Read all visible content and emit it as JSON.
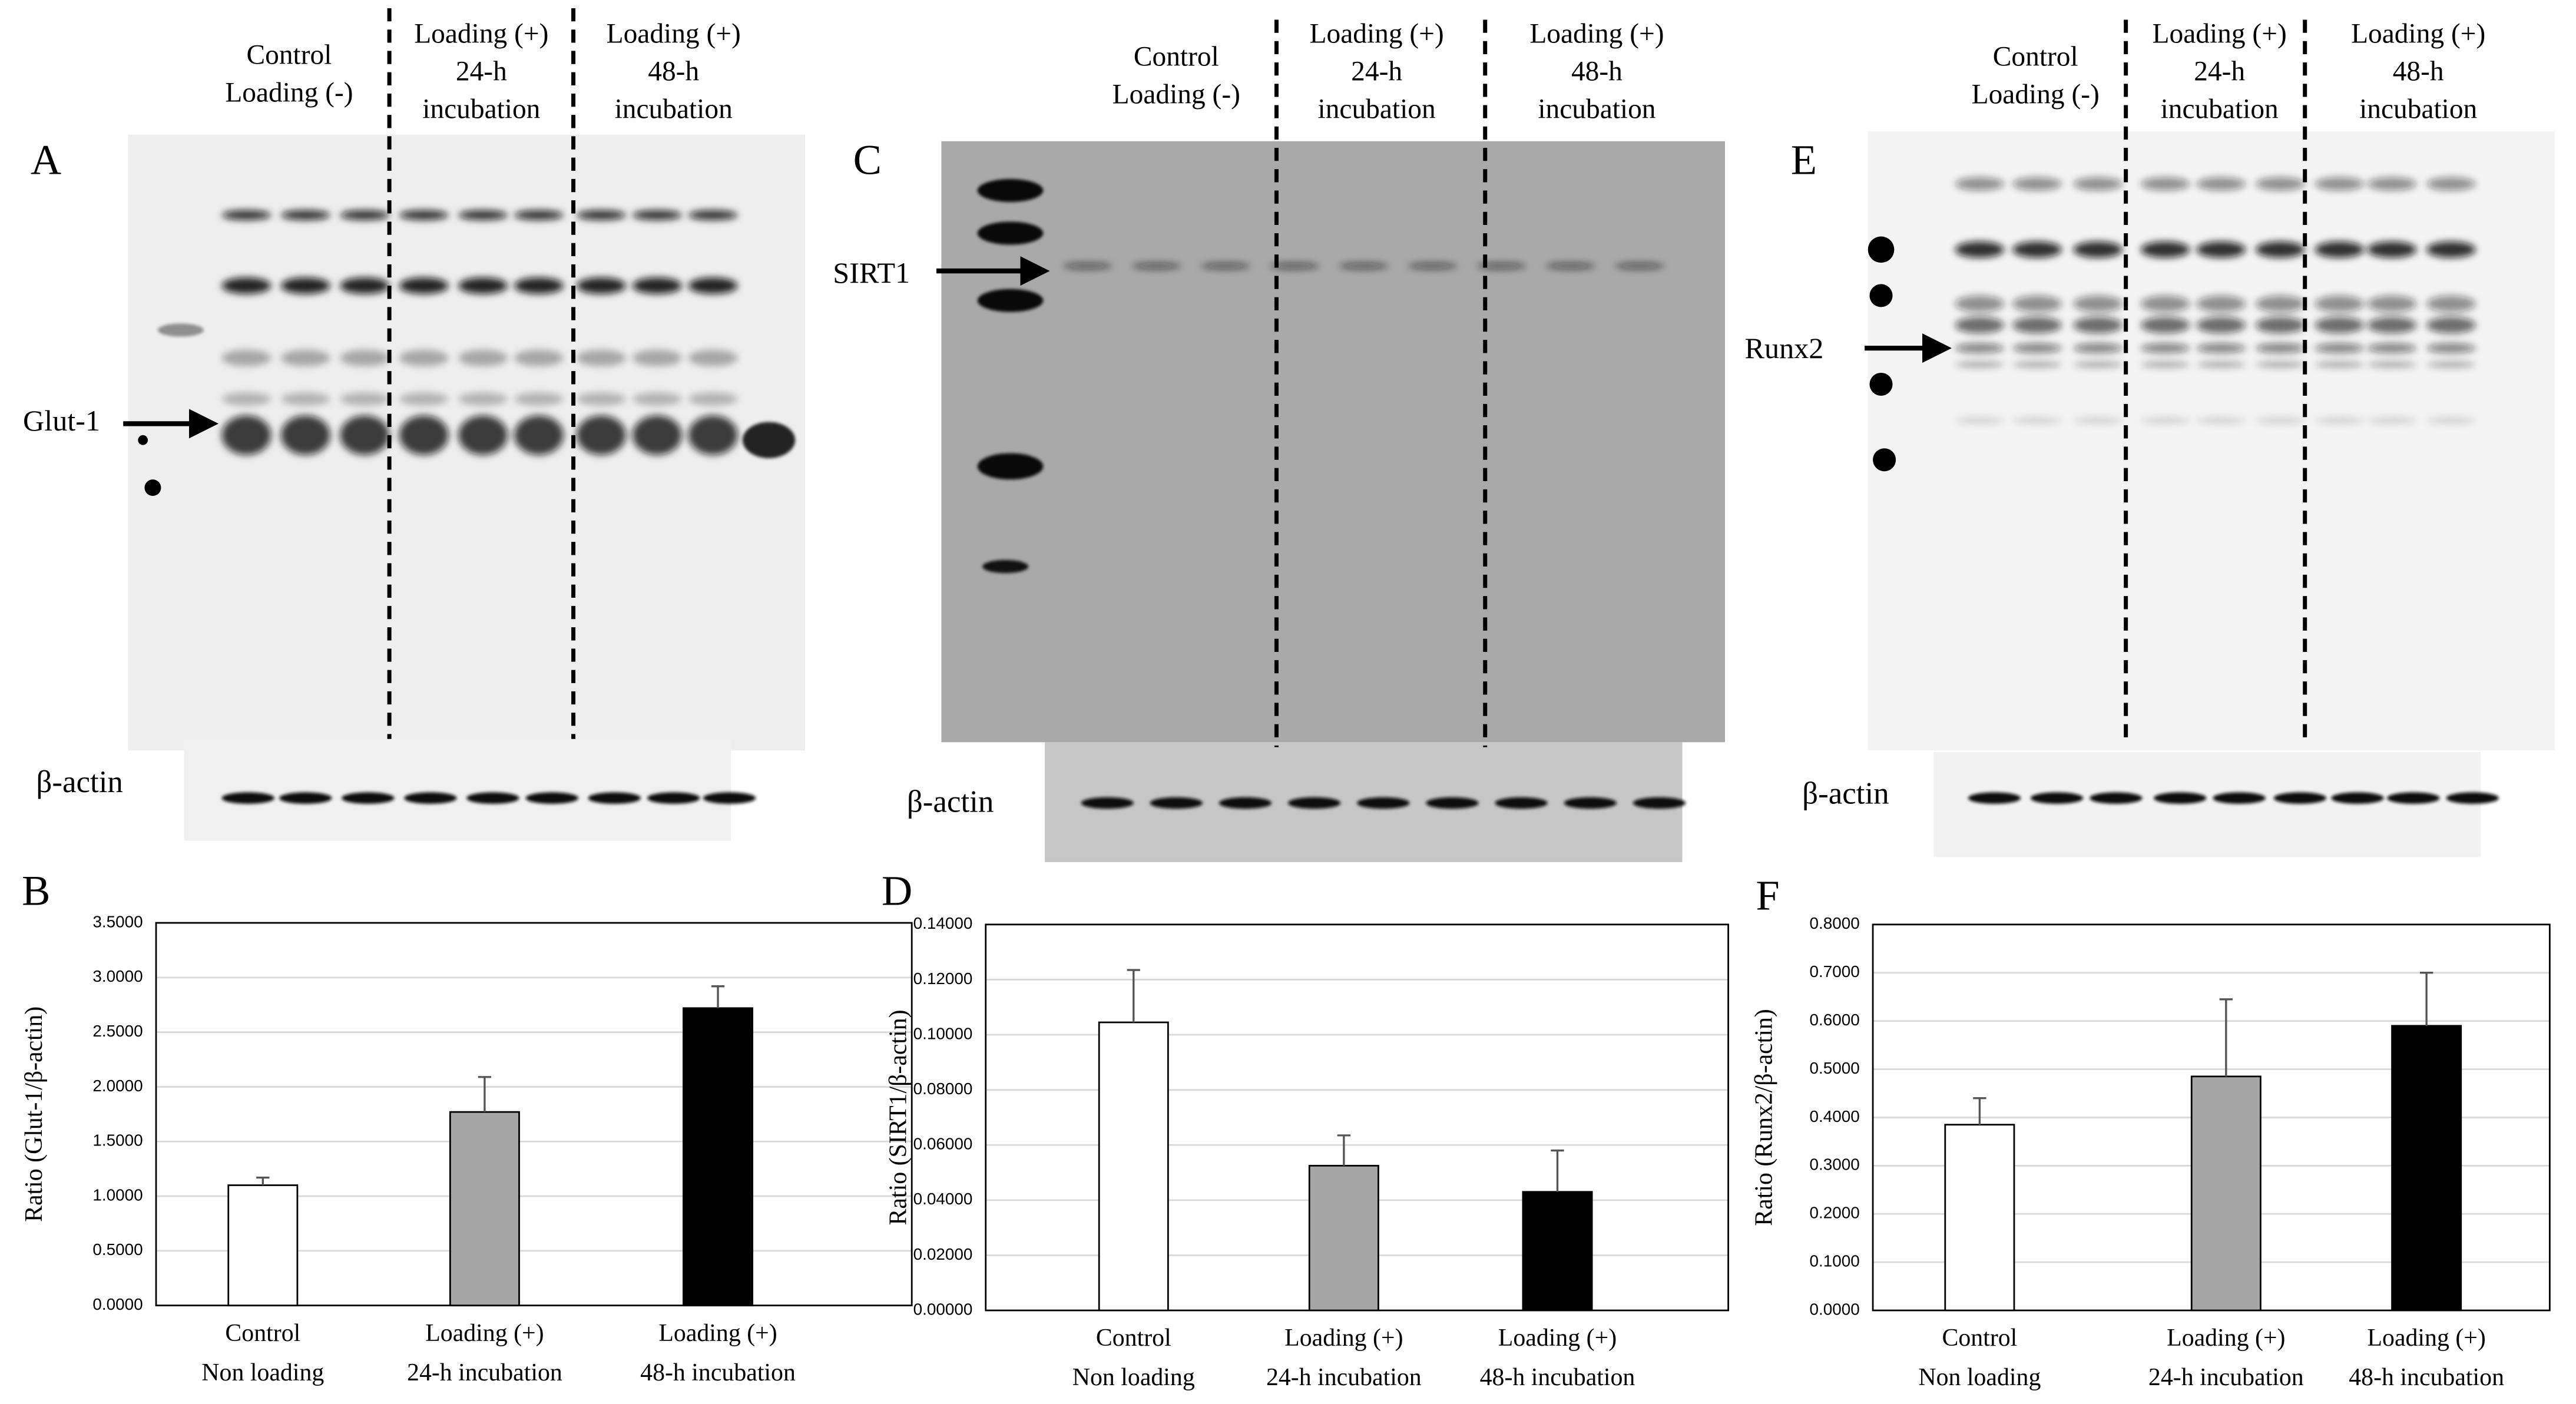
{
  "blots": [
    {
      "panel": "A",
      "groups": [
        "Control\nLoading (-)",
        "Loading (+)\n24-h\nincubation",
        "Loading (+)\n48-h\nincubation"
      ],
      "target": "Glut-1",
      "reference": "β-actin"
    },
    {
      "panel": "C",
      "groups": [
        "Control\nLoading (-)",
        "Loading (+)\n24-h\nincubation",
        "Loading (+)\n48-h\nincubation"
      ],
      "target": "SIRT1",
      "reference": "β-actin"
    },
    {
      "panel": "E",
      "groups": [
        "Control\nLoading (-)",
        "Loading (+)\n24-h\nincubation",
        "Loading (+)\n48-h\nincubation"
      ],
      "target": "Runx2",
      "reference": "β-actin"
    }
  ],
  "chart_data": [
    {
      "type": "bar",
      "panel": "B",
      "y_label": "Ratio (Glut-1/β-actin)",
      "categories": [
        "Control\nNon loading",
        "Loading (+)\n24-h incubation",
        "Loading (+)\n48-h incubation"
      ],
      "values": [
        1.1,
        1.77,
        2.72
      ],
      "errors": [
        0.07,
        0.32,
        0.2
      ],
      "colors": [
        "#ffffff",
        "#a6a6a6",
        "#000000"
      ],
      "ylim": [
        0,
        3.5
      ],
      "grid": true,
      "yticks": [
        {
          "value": 0,
          "label": "0.0000"
        },
        {
          "value": 0.5,
          "label": "0.5000"
        },
        {
          "value": 1,
          "label": "1.0000"
        },
        {
          "value": 1.5,
          "label": "1.5000"
        },
        {
          "value": 2,
          "label": "2.0000"
        },
        {
          "value": 2.5,
          "label": "2.5000"
        },
        {
          "value": 3,
          "label": "3.0000"
        },
        {
          "value": 3.5,
          "label": "3.5000"
        }
      ]
    },
    {
      "type": "bar",
      "panel": "D",
      "y_label": "Ratio (SIRT1/β-actin)",
      "categories": [
        "Control\nNon loading",
        "Loading (+)\n24-h incubation",
        "Loading (+)\n48-h incubation"
      ],
      "values": [
        0.1045,
        0.0525,
        0.043
      ],
      "errors": [
        0.019,
        0.011,
        0.015
      ],
      "colors": [
        "#ffffff",
        "#a6a6a6",
        "#000000"
      ],
      "ylim": [
        0,
        0.14
      ],
      "grid": true,
      "yticks": [
        {
          "value": 0,
          "label": "0.00000"
        },
        {
          "value": 0.02,
          "label": "0.02000"
        },
        {
          "value": 0.04,
          "label": "0.04000"
        },
        {
          "value": 0.06,
          "label": "0.06000"
        },
        {
          "value": 0.08,
          "label": "0.08000"
        },
        {
          "value": 0.1,
          "label": "0.10000"
        },
        {
          "value": 0.12,
          "label": "0.12000"
        },
        {
          "value": 0.14,
          "label": "0.14000"
        }
      ]
    },
    {
      "type": "bar",
      "panel": "F",
      "y_label": "Ratio (Runx2/β-actin)",
      "categories": [
        "Control\nNon loading",
        "Loading (+)\n24-h incubation",
        "Loading (+)\n48-h incubation"
      ],
      "values": [
        0.385,
        0.485,
        0.59
      ],
      "errors": [
        0.055,
        0.16,
        0.11
      ],
      "colors": [
        "#ffffff",
        "#a6a6a6",
        "#000000"
      ],
      "ylim": [
        0,
        0.8
      ],
      "grid": true,
      "yticks": [
        {
          "value": 0,
          "label": "0.0000"
        },
        {
          "value": 0.1,
          "label": "0.1000"
        },
        {
          "value": 0.2,
          "label": "0.2000"
        },
        {
          "value": 0.3,
          "label": "0.3000"
        },
        {
          "value": 0.4,
          "label": "0.4000"
        },
        {
          "value": 0.5,
          "label": "0.5000"
        },
        {
          "value": 0.6,
          "label": "0.6000"
        },
        {
          "value": 0.7,
          "label": "0.7000"
        },
        {
          "value": 0.8,
          "label": "0.8000"
        }
      ]
    }
  ]
}
